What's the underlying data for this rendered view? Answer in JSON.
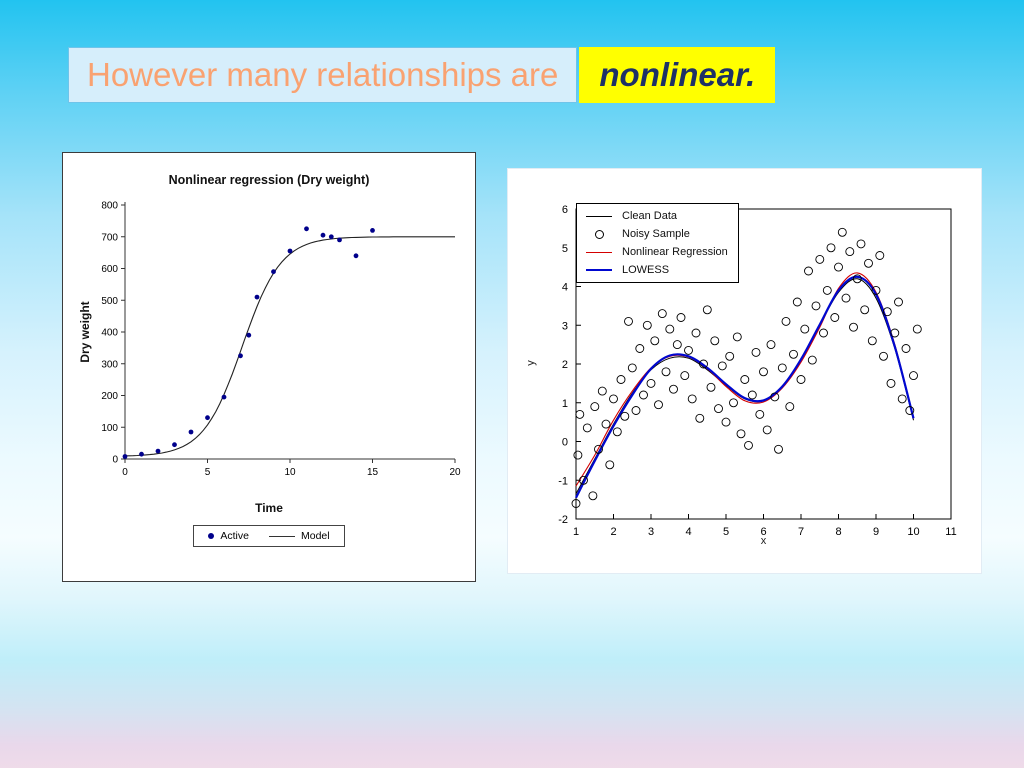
{
  "slide": {
    "title_part1": "However many relationships are",
    "title_part2": "nonlinear.",
    "colors": {
      "part1_bg": "#d6eefb",
      "part1_border": "#6fc4ea",
      "part1_text": "#f9a271",
      "part2_bg": "#ffff00",
      "part2_text": "#1e3166"
    }
  },
  "chart_data": [
    {
      "id": "nonlinear-regression-dry-weight",
      "type": "scatter",
      "title": "Nonlinear regression (Dry weight)",
      "xlabel": "Time",
      "ylabel": "Dry weight",
      "xlim": [
        0,
        20
      ],
      "ylim": [
        0,
        800
      ],
      "xticks": [
        0,
        5,
        10,
        15,
        20
      ],
      "yticks": [
        0,
        100,
        200,
        300,
        400,
        500,
        600,
        700,
        800
      ],
      "legend": [
        {
          "label": "Active",
          "style": "dot",
          "color": "#00008b"
        },
        {
          "label": "Model",
          "style": "line",
          "color": "#333333",
          "width": 1
        }
      ],
      "scatter": [
        [
          0,
          8
        ],
        [
          1,
          15
        ],
        [
          2,
          25
        ],
        [
          3,
          45
        ],
        [
          4,
          85
        ],
        [
          5,
          130
        ],
        [
          6,
          195
        ],
        [
          7,
          325
        ],
        [
          7.5,
          390
        ],
        [
          8,
          510
        ],
        [
          9,
          590
        ],
        [
          10,
          655
        ],
        [
          11,
          725
        ],
        [
          12,
          705
        ],
        [
          12.5,
          700
        ],
        [
          13,
          690
        ],
        [
          14,
          640
        ],
        [
          15,
          720
        ]
      ],
      "model_logistic": {
        "y0": 8,
        "L": 692,
        "k": 0.85,
        "x0": 7.1
      }
    },
    {
      "id": "lowess-vs-nonlinear-regression",
      "type": "scatter+line",
      "title": "",
      "xlabel": "x",
      "ylabel": "y",
      "xlim": [
        1,
        11
      ],
      "ylim": [
        -2,
        6
      ],
      "xticks": [
        1,
        2,
        3,
        4,
        5,
        6,
        7,
        8,
        9,
        10,
        11
      ],
      "yticks": [
        -2,
        -1,
        0,
        1,
        2,
        3,
        4,
        5,
        6
      ],
      "legend": [
        {
          "label": "Clean Data",
          "style": "line",
          "color": "#000000",
          "width": 1
        },
        {
          "label": "Noisy Sample",
          "style": "circle",
          "color": "#000000"
        },
        {
          "label": "Nonlinear Regression",
          "style": "line",
          "color": "#d40000",
          "width": 1
        },
        {
          "label": "LOWESS",
          "style": "line",
          "color": "#0008d0",
          "width": 2.5
        }
      ],
      "series": {
        "clean": [
          [
            1,
            -1.35
          ],
          [
            1.5,
            -0.45
          ],
          [
            2,
            0.45
          ],
          [
            2.5,
            1.25
          ],
          [
            3,
            1.85
          ],
          [
            3.5,
            2.15
          ],
          [
            4,
            2.15
          ],
          [
            4.5,
            1.85
          ],
          [
            5,
            1.45
          ],
          [
            5.5,
            1.1
          ],
          [
            6,
            1.05
          ],
          [
            6.5,
            1.4
          ],
          [
            7,
            2.1
          ],
          [
            7.5,
            3.0
          ],
          [
            8,
            3.85
          ],
          [
            8.5,
            4.2
          ],
          [
            9,
            3.7
          ],
          [
            9.5,
            2.4
          ],
          [
            10,
            0.55
          ]
        ],
        "regression": [
          [
            1,
            -1.15
          ],
          [
            1.5,
            -0.35
          ],
          [
            2,
            0.55
          ],
          [
            2.5,
            1.3
          ],
          [
            3,
            1.9
          ],
          [
            3.5,
            2.2
          ],
          [
            4,
            2.18
          ],
          [
            4.5,
            1.88
          ],
          [
            5,
            1.42
          ],
          [
            5.5,
            1.05
          ],
          [
            6,
            1.02
          ],
          [
            6.5,
            1.38
          ],
          [
            7,
            2.05
          ],
          [
            7.5,
            2.95
          ],
          [
            8,
            3.95
          ],
          [
            8.5,
            4.35
          ],
          [
            9,
            3.85
          ],
          [
            9.5,
            2.5
          ],
          [
            10,
            0.6
          ]
        ],
        "lowess": [
          [
            1,
            -1.45
          ],
          [
            1.5,
            -0.5
          ],
          [
            2,
            0.4
          ],
          [
            2.5,
            1.2
          ],
          [
            3,
            1.88
          ],
          [
            3.5,
            2.22
          ],
          [
            4,
            2.2
          ],
          [
            4.5,
            1.9
          ],
          [
            5,
            1.48
          ],
          [
            5.5,
            1.12
          ],
          [
            6,
            1.06
          ],
          [
            6.5,
            1.42
          ],
          [
            7,
            2.12
          ],
          [
            7.5,
            3.02
          ],
          [
            8,
            3.9
          ],
          [
            8.5,
            4.25
          ],
          [
            9,
            3.8
          ],
          [
            9.5,
            2.45
          ],
          [
            10,
            0.6
          ]
        ],
        "noisy": [
          [
            1.0,
            -1.6
          ],
          [
            1.05,
            -0.35
          ],
          [
            1.1,
            0.7
          ],
          [
            1.2,
            -1.0
          ],
          [
            1.3,
            0.35
          ],
          [
            1.45,
            -1.4
          ],
          [
            1.5,
            0.9
          ],
          [
            1.6,
            -0.2
          ],
          [
            1.7,
            1.3
          ],
          [
            1.8,
            0.45
          ],
          [
            1.9,
            -0.6
          ],
          [
            2.0,
            1.1
          ],
          [
            2.1,
            0.25
          ],
          [
            2.2,
            1.6
          ],
          [
            2.3,
            0.65
          ],
          [
            2.4,
            3.1
          ],
          [
            2.5,
            1.9
          ],
          [
            2.6,
            0.8
          ],
          [
            2.7,
            2.4
          ],
          [
            2.8,
            1.2
          ],
          [
            2.9,
            3.0
          ],
          [
            3.0,
            1.5
          ],
          [
            3.1,
            2.6
          ],
          [
            3.2,
            0.95
          ],
          [
            3.3,
            3.3
          ],
          [
            3.4,
            1.8
          ],
          [
            3.5,
            2.9
          ],
          [
            3.6,
            1.35
          ],
          [
            3.7,
            2.5
          ],
          [
            3.8,
            3.2
          ],
          [
            3.9,
            1.7
          ],
          [
            4.0,
            2.35
          ],
          [
            4.1,
            1.1
          ],
          [
            4.2,
            2.8
          ],
          [
            4.3,
            0.6
          ],
          [
            4.4,
            2.0
          ],
          [
            4.5,
            3.4
          ],
          [
            4.6,
            1.4
          ],
          [
            4.7,
            2.6
          ],
          [
            4.8,
            0.85
          ],
          [
            4.9,
            1.95
          ],
          [
            5.0,
            0.5
          ],
          [
            5.1,
            2.2
          ],
          [
            5.2,
            1.0
          ],
          [
            5.3,
            2.7
          ],
          [
            5.4,
            0.2
          ],
          [
            5.5,
            1.6
          ],
          [
            5.6,
            -0.1
          ],
          [
            5.7,
            1.2
          ],
          [
            5.8,
            2.3
          ],
          [
            5.9,
            0.7
          ],
          [
            6.0,
            1.8
          ],
          [
            6.1,
            0.3
          ],
          [
            6.2,
            2.5
          ],
          [
            6.3,
            1.15
          ],
          [
            6.4,
            -0.2
          ],
          [
            6.5,
            1.9
          ],
          [
            6.6,
            3.1
          ],
          [
            6.7,
            0.9
          ],
          [
            6.8,
            2.25
          ],
          [
            6.9,
            3.6
          ],
          [
            7.0,
            1.6
          ],
          [
            7.1,
            2.9
          ],
          [
            7.2,
            4.4
          ],
          [
            7.3,
            2.1
          ],
          [
            7.4,
            3.5
          ],
          [
            7.5,
            4.7
          ],
          [
            7.6,
            2.8
          ],
          [
            7.7,
            3.9
          ],
          [
            7.8,
            5.0
          ],
          [
            7.9,
            3.2
          ],
          [
            8.0,
            4.5
          ],
          [
            8.1,
            5.4
          ],
          [
            8.2,
            3.7
          ],
          [
            8.3,
            4.9
          ],
          [
            8.4,
            2.95
          ],
          [
            8.5,
            4.2
          ],
          [
            8.6,
            5.1
          ],
          [
            8.7,
            3.4
          ],
          [
            8.8,
            4.6
          ],
          [
            8.9,
            2.6
          ],
          [
            9.0,
            3.9
          ],
          [
            9.1,
            4.8
          ],
          [
            9.2,
            2.2
          ],
          [
            9.3,
            3.35
          ],
          [
            9.4,
            1.5
          ],
          [
            9.5,
            2.8
          ],
          [
            9.6,
            3.6
          ],
          [
            9.7,
            1.1
          ],
          [
            9.8,
            2.4
          ],
          [
            9.9,
            0.8
          ],
          [
            10.0,
            1.7
          ],
          [
            10.1,
            2.9
          ]
        ]
      }
    }
  ]
}
